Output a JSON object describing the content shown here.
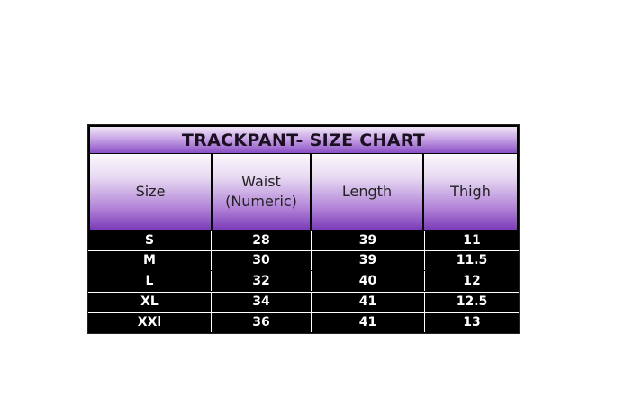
{
  "title": "TRACKPANT- SIZE CHART",
  "headers": [
    "Size",
    "Waist\n(Numeric)",
    "Length",
    "Thigh"
  ],
  "header_waist_line1": "Waist",
  "header_waist_line2": "(Numeric)",
  "rows": [
    [
      "S",
      "28",
      "39",
      "11"
    ],
    [
      "M",
      "30",
      "39",
      "11.5"
    ],
    [
      "L",
      "32",
      "40",
      "12"
    ],
    [
      "XL",
      "34",
      "41",
      "12.5"
    ],
    [
      "XXl",
      "36",
      "41",
      "13"
    ]
  ],
  "colors": {
    "header_purple": "#7b3bb8",
    "body_bg": "#000000",
    "body_text": "#ffffff"
  }
}
